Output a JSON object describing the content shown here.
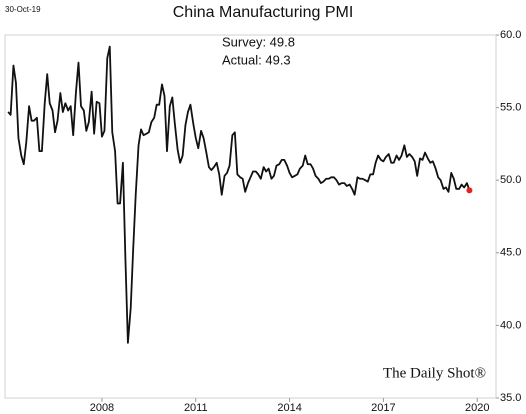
{
  "chart_data": {
    "type": "line",
    "title": "China Manufacturing PMI",
    "date_label": "30-Oct-19",
    "annotations": [
      "Survey: 49.8",
      "Actual:  49.3"
    ],
    "watermark": "The Daily Shot®",
    "xlim": [
      2004.9,
      2020.6
    ],
    "xticks": [
      2008,
      2011,
      2014,
      2017,
      2020
    ],
    "ylim": [
      35,
      60
    ],
    "yticks": [
      {
        "value": 60,
        "label": "60.0"
      },
      {
        "value": 55,
        "label": "55.0"
      },
      {
        "value": 50,
        "label": "50.0"
      },
      {
        "value": 45,
        "label": "45.0"
      },
      {
        "value": 40,
        "label": "40.0"
      },
      {
        "value": 35,
        "label": "35.0"
      }
    ],
    "grid": false,
    "last_point_color": "#e8231f",
    "x": [
      2005,
      2005.08,
      2005.17,
      2005.25,
      2005.33,
      2005.42,
      2005.5,
      2005.58,
      2005.67,
      2005.75,
      2005.83,
      2005.92,
      2006,
      2006.08,
      2006.17,
      2006.25,
      2006.33,
      2006.42,
      2006.5,
      2006.58,
      2006.67,
      2006.75,
      2006.83,
      2006.92,
      2007,
      2007.08,
      2007.17,
      2007.25,
      2007.33,
      2007.42,
      2007.5,
      2007.58,
      2007.67,
      2007.75,
      2007.83,
      2007.92,
      2008,
      2008.08,
      2008.17,
      2008.25,
      2008.33,
      2008.42,
      2008.5,
      2008.58,
      2008.67,
      2008.75,
      2008.83,
      2008.92,
      2009,
      2009.08,
      2009.17,
      2009.25,
      2009.33,
      2009.42,
      2009.5,
      2009.58,
      2009.67,
      2009.75,
      2009.83,
      2009.92,
      2010,
      2010.08,
      2010.17,
      2010.25,
      2010.33,
      2010.42,
      2010.5,
      2010.58,
      2010.67,
      2010.75,
      2010.83,
      2010.92,
      2011,
      2011.08,
      2011.17,
      2011.25,
      2011.33,
      2011.42,
      2011.5,
      2011.58,
      2011.67,
      2011.75,
      2011.83,
      2011.92,
      2012,
      2012.08,
      2012.17,
      2012.25,
      2012.33,
      2012.42,
      2012.5,
      2012.58,
      2012.67,
      2012.75,
      2012.83,
      2012.92,
      2013,
      2013.08,
      2013.17,
      2013.25,
      2013.33,
      2013.42,
      2013.5,
      2013.58,
      2013.67,
      2013.75,
      2013.83,
      2013.92,
      2014,
      2014.08,
      2014.17,
      2014.25,
      2014.33,
      2014.42,
      2014.5,
      2014.58,
      2014.67,
      2014.75,
      2014.83,
      2014.92,
      2015,
      2015.08,
      2015.17,
      2015.25,
      2015.33,
      2015.42,
      2015.5,
      2015.58,
      2015.67,
      2015.75,
      2015.83,
      2015.92,
      2016,
      2016.08,
      2016.17,
      2016.25,
      2016.33,
      2016.42,
      2016.5,
      2016.58,
      2016.67,
      2016.75,
      2016.83,
      2016.92,
      2017,
      2017.08,
      2017.17,
      2017.25,
      2017.33,
      2017.42,
      2017.5,
      2017.58,
      2017.67,
      2017.75,
      2017.83,
      2017.92,
      2018,
      2018.08,
      2018.17,
      2018.25,
      2018.33,
      2018.42,
      2018.5,
      2018.58,
      2018.67,
      2018.75,
      2018.83,
      2018.92,
      2019,
      2019.08,
      2019.17,
      2019.25,
      2019.33,
      2019.42,
      2019.5,
      2019.58,
      2019.67,
      2019.75
    ],
    "series": [
      {
        "name": "China Manufacturing PMI",
        "color": "#111111",
        "values": [
          54.7,
          54.5,
          57.9,
          56.7,
          52.9,
          51.7,
          51.1,
          52.6,
          55.1,
          54.1,
          54.1,
          54.3,
          52.0,
          52.0,
          55.3,
          57.3,
          55.3,
          54.8,
          53.3,
          54.1,
          56.0,
          54.7,
          55.3,
          54.8,
          55.1,
          53.1,
          56.1,
          58.1,
          55.1,
          54.8,
          53.4,
          54.0,
          56.1,
          53.2,
          55.4,
          55.3,
          53.0,
          53.4,
          58.4,
          59.2,
          53.3,
          52.0,
          48.4,
          48.4,
          51.2,
          44.6,
          38.8,
          41.2,
          45.3,
          49.0,
          52.4,
          53.5,
          53.1,
          53.2,
          53.3,
          54.0,
          54.3,
          55.2,
          55.2,
          56.6,
          55.8,
          52.0,
          55.1,
          55.7,
          53.9,
          52.1,
          51.2,
          51.7,
          53.8,
          54.7,
          55.2,
          53.9,
          52.9,
          52.2,
          53.4,
          52.9,
          52.0,
          50.9,
          50.7,
          50.9,
          51.2,
          50.4,
          49.0,
          50.3,
          50.5,
          51.0,
          53.1,
          53.3,
          50.4,
          50.2,
          50.1,
          49.2,
          49.8,
          50.2,
          50.6,
          50.6,
          50.4,
          50.1,
          50.9,
          50.6,
          50.8,
          50.1,
          50.3,
          51.0,
          51.1,
          51.4,
          51.4,
          51.0,
          50.5,
          50.2,
          50.3,
          50.4,
          50.8,
          51.0,
          51.7,
          51.1,
          51.1,
          50.8,
          50.3,
          50.1,
          49.8,
          49.9,
          50.1,
          50.1,
          50.2,
          50.2,
          50.0,
          49.7,
          49.8,
          49.8,
          49.6,
          49.7,
          49.4,
          49.0,
          50.2,
          50.1,
          50.1,
          50.0,
          49.9,
          50.4,
          50.4,
          51.2,
          51.7,
          51.4,
          51.3,
          51.6,
          51.8,
          51.2,
          51.2,
          51.7,
          51.4,
          51.7,
          52.4,
          51.6,
          51.8,
          51.6,
          51.3,
          50.3,
          51.5,
          51.4,
          51.9,
          51.5,
          51.2,
          51.3,
          50.8,
          50.2,
          50.0,
          49.4,
          49.5,
          49.2,
          50.5,
          50.1,
          49.4,
          49.4,
          49.7,
          49.5,
          49.8,
          49.3
        ]
      }
    ]
  }
}
